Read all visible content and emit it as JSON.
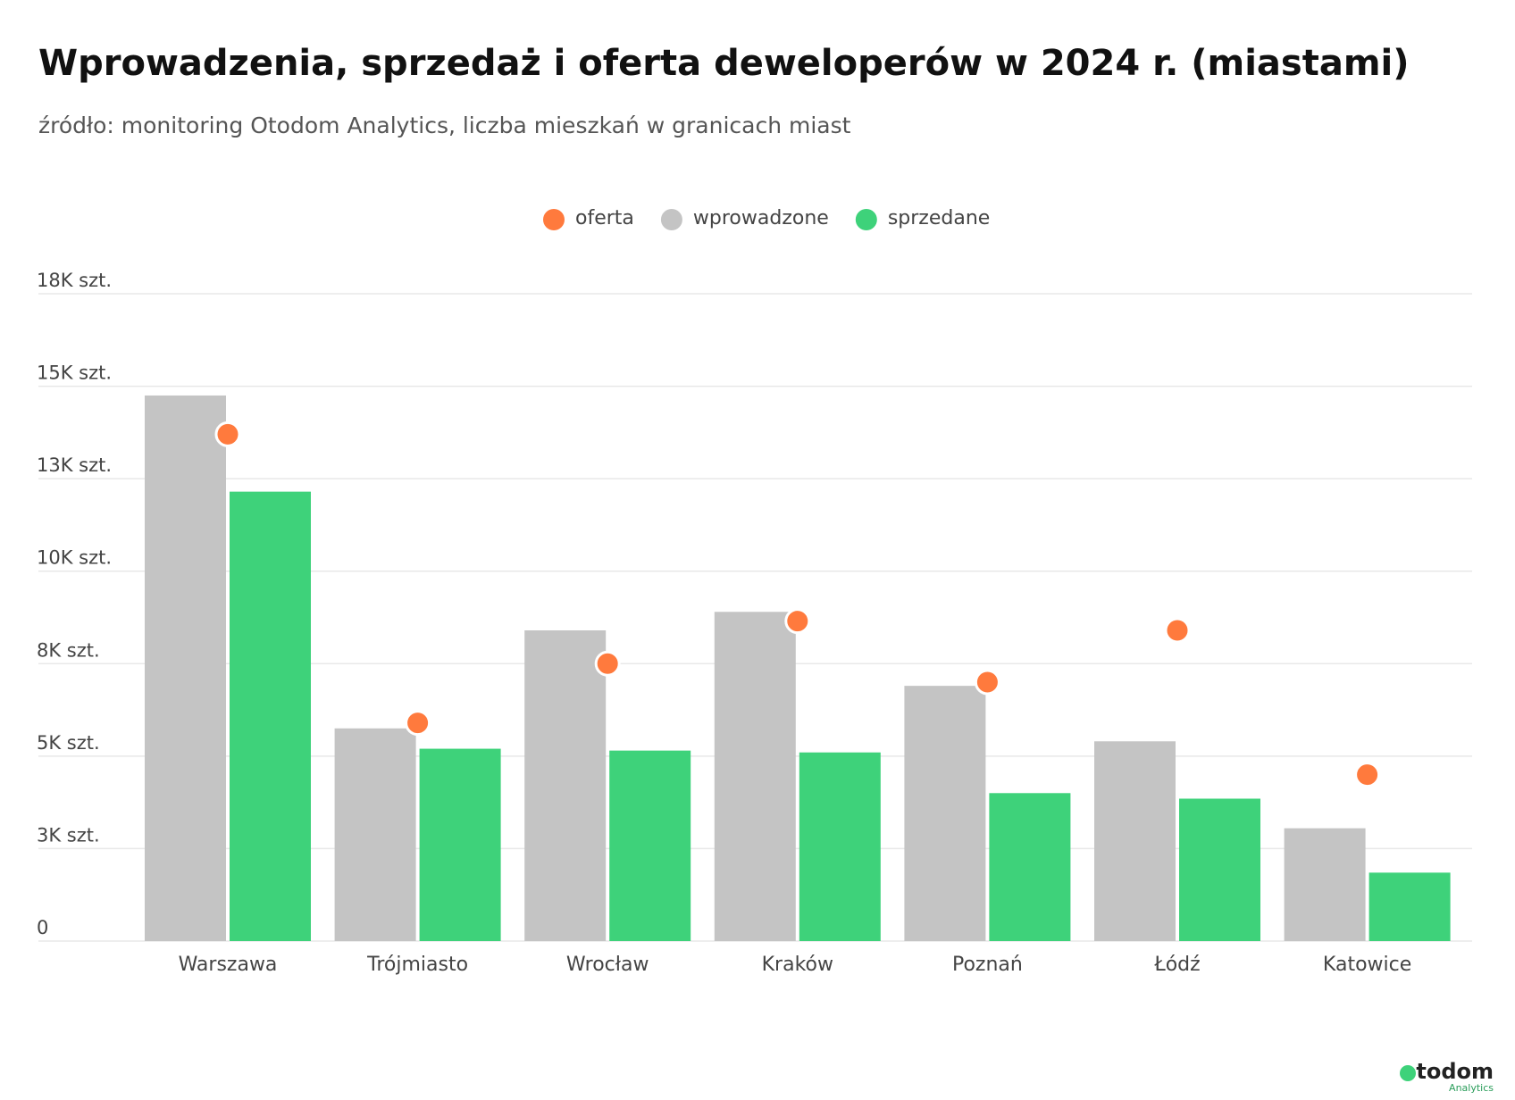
{
  "chart_data": {
    "type": "bar",
    "title": "Wprowadzenia, sprzedaż i oferta deweloperów w 2024 r. (miastami)",
    "subtitle": "źródło: monitoring Otodom Analytics, liczba mieszkań w granicach miast",
    "categories": [
      "Warszawa",
      "Trójmiasto",
      "Wrocław",
      "Kraków",
      "Poznań",
      "Łódź",
      "Katowice"
    ],
    "series": [
      {
        "name": "oferta",
        "color": "#ff7a3d",
        "marker": "dot",
        "values": [
          13700,
          5900,
          7500,
          8650,
          7000,
          8400,
          4500
        ]
      },
      {
        "name": "wprowadzone",
        "color": "#c4c4c4",
        "marker": "bar",
        "values": [
          14750,
          5750,
          8400,
          8900,
          6900,
          5400,
          3050
        ]
      },
      {
        "name": "sprzedane",
        "color": "#3ed27a",
        "marker": "bar",
        "values": [
          12150,
          5200,
          5150,
          5100,
          4000,
          3850,
          1850
        ]
      }
    ],
    "ylim": [
      0,
      17500
    ],
    "yticks": [
      0,
      {
        "value": 2500,
        "label": "3K szt."
      },
      {
        "value": 5000,
        "label": "5K szt."
      },
      {
        "value": 7500,
        "label": "8K szt."
      },
      {
        "value": 10000,
        "label": "10K szt."
      },
      {
        "value": 12500,
        "label": "13K szt."
      },
      {
        "value": 15000,
        "label": "15K szt."
      },
      {
        "value": 17500,
        "label": "18K szt."
      }
    ],
    "grid": true,
    "legend": "top",
    "brand": "otodom",
    "brand_sub": "Analytics"
  }
}
